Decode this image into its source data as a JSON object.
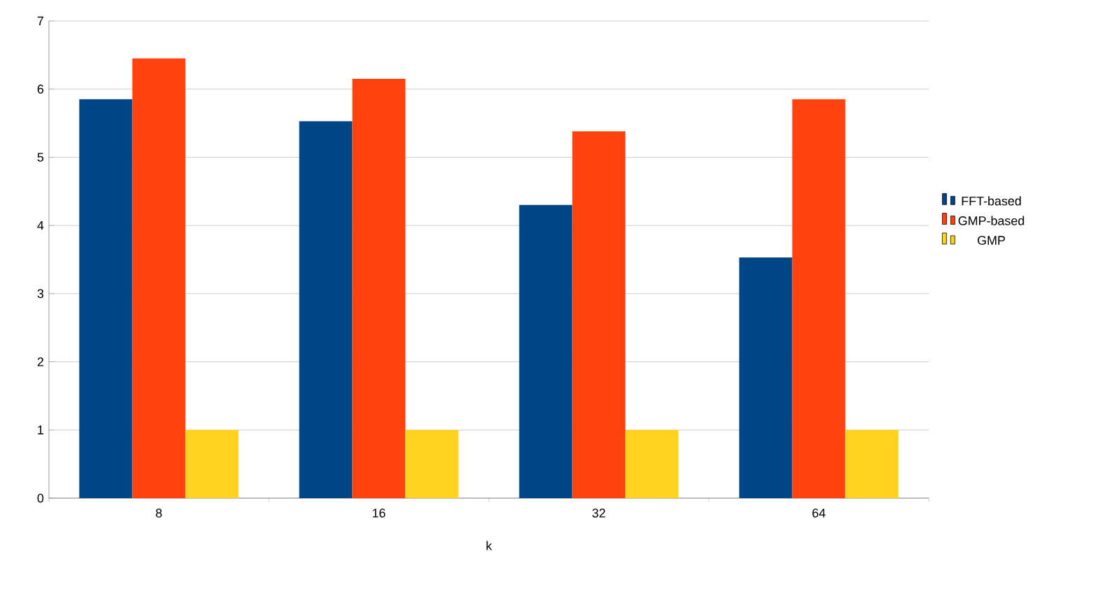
{
  "chart_data": {
    "type": "bar",
    "xlabel": "k",
    "categories": [
      "8",
      "16",
      "32",
      "64"
    ],
    "series": [
      {
        "name": "FFT-based",
        "color": "#004586",
        "values": [
          5.85,
          5.53,
          4.3,
          3.53
        ]
      },
      {
        "name": "GMP-based",
        "color": "#ff420e",
        "values": [
          6.45,
          6.15,
          5.38,
          5.85
        ]
      },
      {
        "name": "GMP",
        "color": "#ffd320",
        "values": [
          1,
          1,
          1,
          1
        ]
      }
    ],
    "ylim": [
      0,
      7
    ],
    "yticks": [
      0,
      1,
      2,
      3,
      4,
      5,
      6,
      7
    ],
    "grid": "y",
    "legend": "right"
  }
}
